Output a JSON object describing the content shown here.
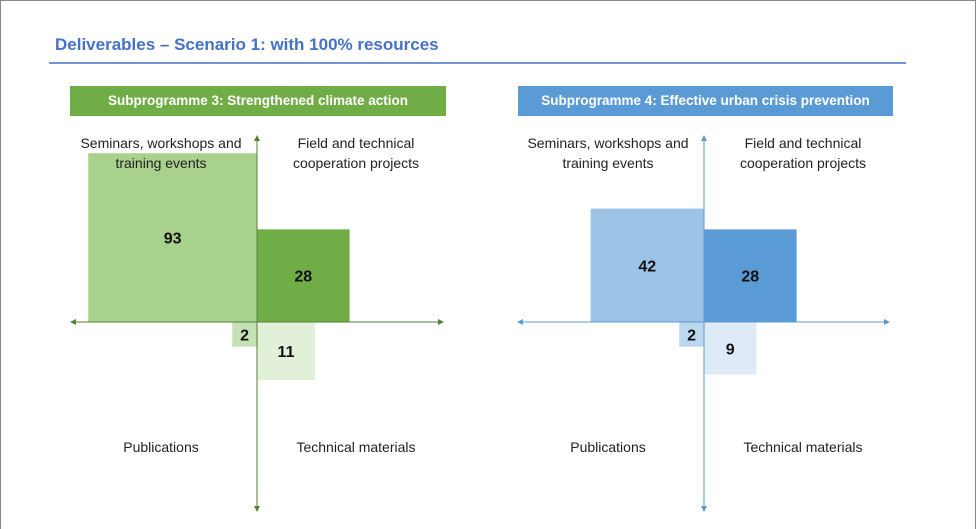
{
  "title": "Deliverables – Scenario 1: with 100% resources",
  "chart_data": [
    {
      "type": "quadrant",
      "title": "Subprogramme 3: Strengthened climate action",
      "title_color": "#70ad47",
      "axis_color": "#548235",
      "categories": [
        "Seminars, workshops and training events",
        "Field and technical cooperation projects",
        "Publications",
        "Technical materials"
      ],
      "values": [
        93,
        28,
        2,
        11
      ],
      "colors": [
        "#a9d18e",
        "#70ad47",
        "#c5e0b4",
        "#e2f0d9"
      ]
    },
    {
      "type": "quadrant",
      "title": "Subprogramme 4: Effective urban crisis prevention",
      "title_color": "#5b9bd5",
      "axis_color": "#5b9bd5",
      "categories": [
        "Seminars, workshops and training events",
        "Field and technical cooperation projects",
        "Publications",
        "Technical materials"
      ],
      "values": [
        42,
        28,
        2,
        9
      ],
      "colors": [
        "#9dc3e6",
        "#5b9bd5",
        "#bdd7ee",
        "#deebf7"
      ]
    }
  ]
}
